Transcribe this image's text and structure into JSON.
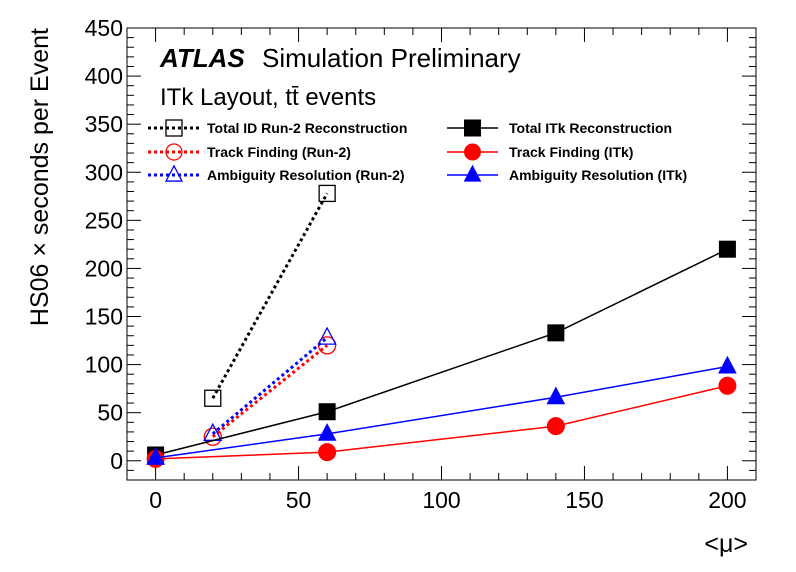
{
  "chart_data": {
    "type": "line",
    "title": "",
    "xlabel": "<μ>",
    "ylabel": "HS06 × seconds per Event",
    "xlim": [
      -10,
      210
    ],
    "ylim": [
      -20,
      450
    ],
    "x_ticks": [
      0,
      50,
      100,
      150,
      200
    ],
    "y_ticks": [
      0,
      50,
      100,
      150,
      200,
      250,
      300,
      350,
      400,
      450
    ],
    "grid": false,
    "legend_position": "top",
    "annotations": {
      "atlas": "ATLAS",
      "simulation": "Simulation Preliminary",
      "layout": "ITk Layout, tt̄ events"
    },
    "series": [
      {
        "name": "Total ID Run-2 Reconstruction",
        "color": "#000000",
        "dashed": true,
        "marker": "open-square",
        "x": [
          20,
          60
        ],
        "y": [
          65,
          278
        ]
      },
      {
        "name": "Track Finding (Run-2)",
        "color": "#ff0000",
        "dashed": true,
        "marker": "open-circle",
        "x": [
          20,
          60
        ],
        "y": [
          25,
          120
        ]
      },
      {
        "name": "Ambiguity Resolution (Run-2)",
        "color": "#0000ff",
        "dashed": true,
        "marker": "open-triangle",
        "x": [
          20,
          60
        ],
        "y": [
          28,
          128
        ]
      },
      {
        "name": "Total ITk Reconstruction",
        "color": "#000000",
        "dashed": false,
        "marker": "filled-square",
        "x": [
          0,
          60,
          140,
          200
        ],
        "y": [
          6,
          51,
          133,
          220
        ]
      },
      {
        "name": "Track Finding (ITk)",
        "color": "#ff0000",
        "dashed": false,
        "marker": "filled-circle",
        "x": [
          0,
          60,
          140,
          200
        ],
        "y": [
          2,
          9,
          36,
          78
        ]
      },
      {
        "name": "Ambiguity Resolution (ITk)",
        "color": "#0000ff",
        "dashed": false,
        "marker": "filled-triangle",
        "x": [
          0,
          60,
          140,
          200
        ],
        "y": [
          3,
          28,
          66,
          98
        ]
      }
    ]
  }
}
